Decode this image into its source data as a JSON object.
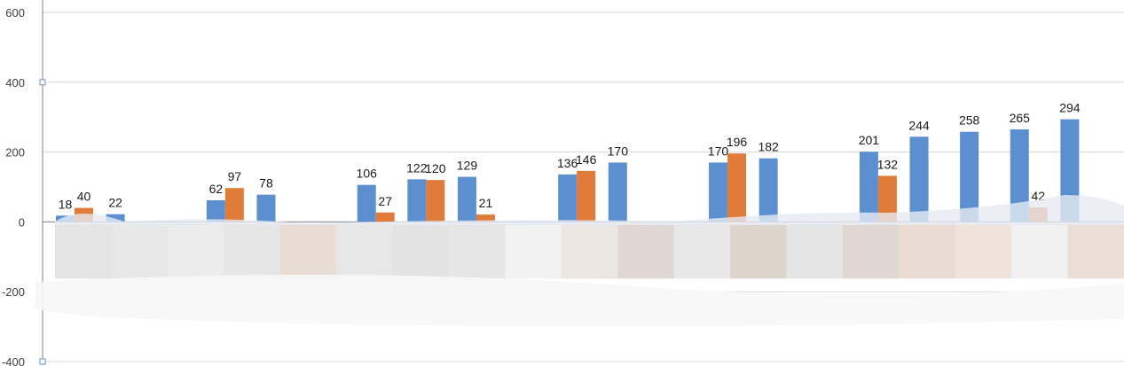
{
  "chart_data": {
    "type": "bar",
    "title": "",
    "xlabel": "",
    "ylabel": "",
    "ylim": [
      -400,
      600
    ],
    "yticks": [
      600,
      400,
      200,
      0,
      -200,
      -400
    ],
    "ytick_labels": [
      "600",
      "400",
      "200",
      "0",
      "-200",
      "-400"
    ],
    "grid": true,
    "legend": "none",
    "colors": {
      "series1": "#5b8fd0",
      "series2": "#e07b39",
      "grid": "#d9d9d9",
      "axis": "#7f7f7f"
    },
    "series": [
      {
        "values": [
          18,
          22,
          null,
          62,
          78,
          null,
          106,
          122,
          129,
          null,
          136,
          170,
          null,
          170,
          182,
          null,
          201,
          244,
          258,
          265,
          294
        ],
        "labels": [
          "18",
          "22",
          "",
          "62",
          "78",
          "",
          "106",
          "122",
          "129",
          "",
          "136",
          "170",
          "",
          "170",
          "182",
          "",
          "201",
          "244",
          "258",
          "265",
          "294"
        ]
      },
      {
        "values": [
          40,
          null,
          null,
          97,
          null,
          null,
          27,
          120,
          21,
          null,
          146,
          null,
          null,
          196,
          null,
          null,
          132,
          null,
          null,
          42,
          null
        ],
        "labels": [
          "40",
          "",
          "",
          "97",
          "",
          "",
          "27",
          "120",
          "21",
          "",
          "146",
          "",
          "",
          "196",
          "",
          "",
          "132",
          "",
          "",
          "42",
          ""
        ]
      }
    ]
  }
}
